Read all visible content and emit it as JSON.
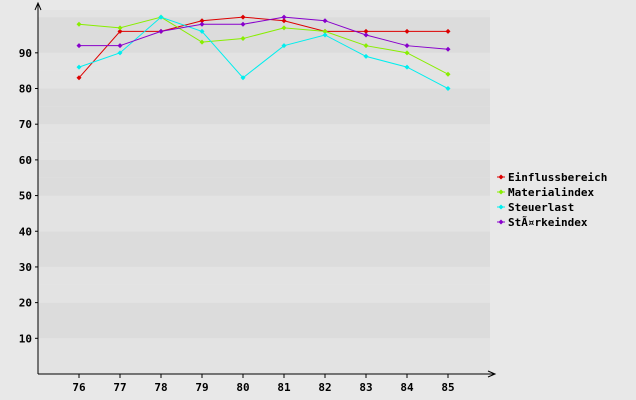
{
  "chart_data": {
    "type": "line",
    "categories": [
      "76",
      "77",
      "78",
      "79",
      "80",
      "81",
      "82",
      "83",
      "84",
      "85"
    ],
    "y_ticks": [
      "10",
      "20",
      "30",
      "40",
      "50",
      "60",
      "70",
      "80",
      "90"
    ],
    "ylim": [
      0,
      102
    ],
    "grid": "horizontal alternating bands",
    "legend_position": "right",
    "series": [
      {
        "name": "Einflussbereich",
        "color": "#dd0000",
        "values": [
          83,
          96,
          96,
          99,
          100,
          99,
          96,
          96,
          96,
          96
        ]
      },
      {
        "name": "Materialindex",
        "color": "#88ee00",
        "values": [
          98,
          97,
          100,
          93,
          94,
          97,
          96,
          92,
          90,
          84
        ]
      },
      {
        "name": "Steuerlast",
        "color": "#00eeee",
        "values": [
          86,
          90,
          100,
          96,
          83,
          92,
          95,
          89,
          86,
          80
        ]
      },
      {
        "name": "StÃ¤rkeindex",
        "color": "#8800cc",
        "values": [
          92,
          92,
          96,
          98,
          98,
          100,
          99,
          95,
          92,
          91
        ]
      }
    ]
  }
}
